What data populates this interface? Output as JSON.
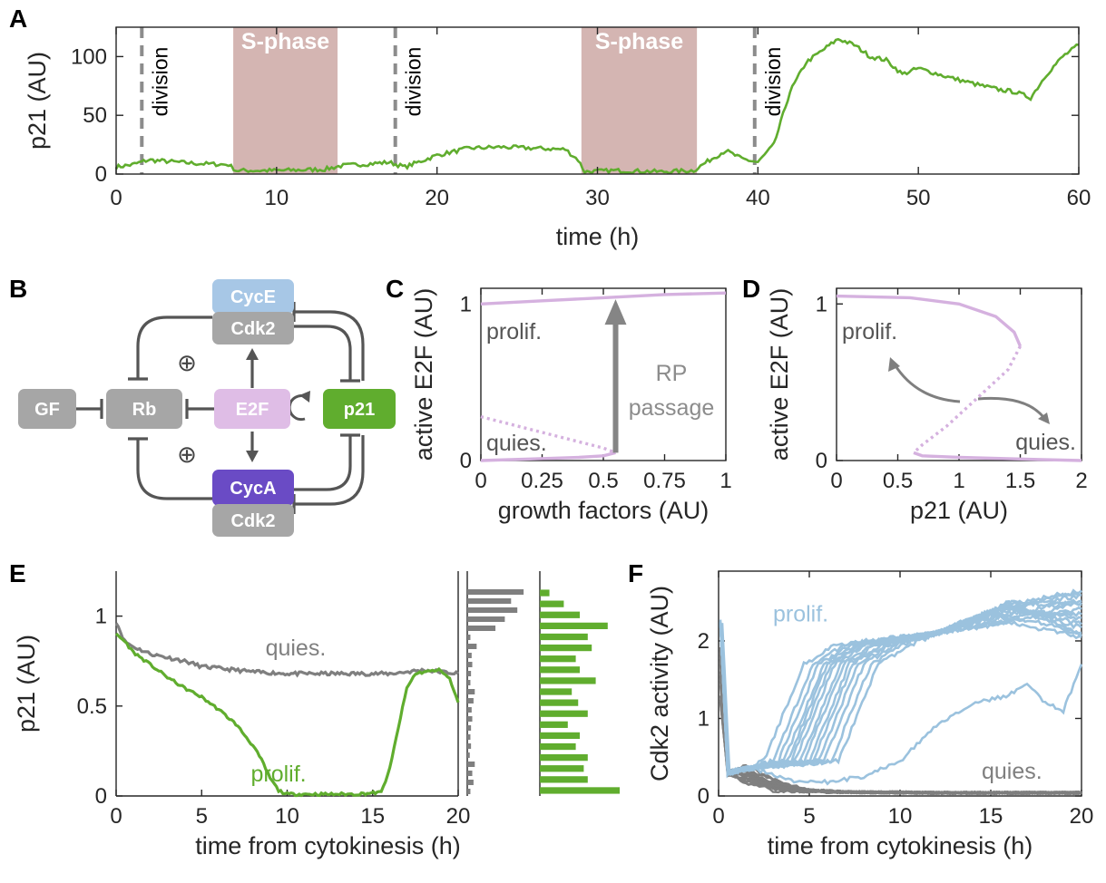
{
  "colors": {
    "p21_green": "#60ad2e",
    "prolif_blue": "#9bc2de",
    "quies_gray": "#7f7f7f",
    "sphase_fill": "#d4b5b2",
    "bifurcation": "#d5b1df",
    "cyce": "#a7c7e6",
    "cyca": "#6a4bc5",
    "e2f": "#dfbde6",
    "node_gray": "#a6a6a6",
    "edge": "#555555"
  },
  "panels": {
    "A": {
      "letter": "A"
    },
    "B": {
      "letter": "B"
    },
    "C": {
      "letter": "C"
    },
    "D": {
      "letter": "D"
    },
    "E": {
      "letter": "E"
    },
    "F": {
      "letter": "F"
    }
  },
  "network": {
    "nodes": {
      "gf": "GF",
      "rb": "Rb",
      "e2f": "E2F",
      "p21": "p21",
      "cyce": "CycE",
      "cyca": "CycA",
      "cdk2_top": "Cdk2",
      "cdk2_bottom": "Cdk2"
    },
    "plus_symbol": "⊕",
    "self_loop_icon": "circular-arrow-icon"
  },
  "chart_data": [
    {
      "id": "A",
      "type": "line",
      "xlabel": "time (h)",
      "ylabel": "p21 (AU)",
      "xlim": [
        0,
        60
      ],
      "ylim": [
        0,
        125
      ],
      "xticks": [
        0,
        10,
        20,
        30,
        40,
        50,
        60
      ],
      "yticks": [
        0,
        50,
        100
      ],
      "shaded_regions": [
        {
          "label": "S-phase",
          "x": [
            7.3,
            13.8
          ]
        },
        {
          "label": "S-phase",
          "x": [
            29.0,
            36.2
          ]
        }
      ],
      "vlines": [
        {
          "label": "division",
          "x": 1.6
        },
        {
          "label": "division",
          "x": 17.4
        },
        {
          "label": "division",
          "x": 39.8
        }
      ],
      "series": [
        {
          "x": [
            0,
            1,
            2,
            3,
            5,
            7,
            7.5,
            10,
            13,
            14,
            16,
            17,
            18,
            19,
            20,
            22,
            24,
            26,
            28,
            28.8,
            29.2,
            31,
            34,
            36,
            37,
            38,
            39,
            40,
            41,
            42,
            43,
            44,
            45,
            46,
            47,
            48,
            49,
            50,
            52,
            54,
            55,
            56,
            57,
            58,
            59,
            60
          ],
          "y": [
            6,
            8,
            12,
            11,
            9,
            8,
            3,
            3,
            4,
            7,
            9,
            10,
            6,
            11,
            16,
            22,
            23,
            22,
            21,
            12,
            2,
            3,
            2,
            3,
            12,
            20,
            13,
            10,
            25,
            70,
            95,
            105,
            115,
            110,
            100,
            97,
            85,
            90,
            82,
            75,
            72,
            70,
            65,
            85,
            100,
            110
          ]
        }
      ]
    },
    {
      "id": "C",
      "type": "line",
      "xlabel": "growth factors (AU)",
      "ylabel": "active E2F (AU)",
      "xlim": [
        0,
        1
      ],
      "ylim": [
        0,
        1.1
      ],
      "xticks": [
        0,
        0.25,
        0.5,
        0.75,
        1
      ],
      "ytick_labels": [
        "0",
        "1"
      ],
      "annotations": [
        "prolif.",
        "quies.",
        "RP",
        "passage"
      ],
      "series": [
        {
          "style": "solid",
          "x": [
            0,
            0.25,
            0.5,
            0.75,
            1
          ],
          "y": [
            1.0,
            1.02,
            1.04,
            1.06,
            1.07
          ]
        },
        {
          "style": "dotted",
          "x": [
            0,
            0.2,
            0.4,
            0.5,
            0.55
          ],
          "y": [
            0.28,
            0.2,
            0.12,
            0.08,
            0.05
          ]
        },
        {
          "style": "solid",
          "x": [
            0,
            0.2,
            0.4,
            0.5,
            0.55
          ],
          "y": [
            0.0,
            0.01,
            0.02,
            0.03,
            0.05
          ]
        }
      ],
      "arrow": {
        "x": 0.55,
        "y": [
          0.05,
          1.03
        ]
      }
    },
    {
      "id": "D",
      "type": "line",
      "xlabel": "p21 (AU)",
      "ylabel": "active E2F (AU)",
      "xlim": [
        0,
        2
      ],
      "ylim": [
        0,
        1.1
      ],
      "xticks": [
        0,
        0.5,
        1,
        1.5,
        2
      ],
      "ytick_labels": [
        "0",
        "1"
      ],
      "annotations": [
        "prolif.",
        "quies."
      ],
      "series": [
        {
          "style": "solid",
          "x": [
            0,
            0.6,
            1.0,
            1.3,
            1.45,
            1.5
          ],
          "y": [
            1.05,
            1.04,
            1.0,
            0.92,
            0.82,
            0.73
          ]
        },
        {
          "style": "dotted",
          "x": [
            1.5,
            1.4,
            1.15,
            0.9,
            0.7,
            0.63
          ],
          "y": [
            0.73,
            0.58,
            0.4,
            0.22,
            0.1,
            0.05
          ]
        },
        {
          "style": "solid",
          "x": [
            0.63,
            0.7,
            1.0,
            1.5,
            2.0
          ],
          "y": [
            0.05,
            0.03,
            0.02,
            0.01,
            0.0
          ]
        }
      ]
    },
    {
      "id": "E",
      "type": "line",
      "xlabel": "time from cytokinesis (h)",
      "ylabel": "p21 (AU)",
      "xlim": [
        0,
        20
      ],
      "ylim": [
        0,
        1.25
      ],
      "xticks": [
        0,
        5,
        10,
        15,
        20
      ],
      "yticks": [
        0,
        0.5,
        1
      ],
      "series": [
        {
          "name": "quies.",
          "x": [
            0,
            0.5,
            1,
            2,
            3,
            4,
            5,
            6,
            7,
            8,
            10,
            12,
            14,
            16,
            18,
            20
          ],
          "y": [
            0.97,
            0.86,
            0.83,
            0.79,
            0.77,
            0.75,
            0.72,
            0.71,
            0.7,
            0.69,
            0.68,
            0.68,
            0.68,
            0.68,
            0.7,
            0.68
          ]
        },
        {
          "name": "prolif.",
          "x": [
            0,
            0.5,
            1,
            2,
            3,
            4,
            5,
            6,
            7,
            8,
            8.5,
            9,
            9.5,
            10,
            12,
            14,
            15.5,
            16,
            16.5,
            17,
            17.5,
            18,
            19,
            19.5,
            20
          ],
          "y": [
            0.9,
            0.86,
            0.8,
            0.73,
            0.66,
            0.6,
            0.55,
            0.48,
            0.4,
            0.28,
            0.2,
            0.1,
            0.03,
            0.01,
            0.01,
            0.01,
            0.02,
            0.15,
            0.38,
            0.6,
            0.68,
            0.69,
            0.7,
            0.65,
            0.52
          ]
        }
      ],
      "histograms": [
        {
          "name": "quies.",
          "values": [
            0.9,
            0.7,
            0.8,
            0.6,
            0.45,
            0.05,
            0.15,
            0.07,
            0.08,
            0.06,
            0.05,
            0.12,
            0.1,
            0.07,
            0.08,
            0.06,
            0.05,
            0.06,
            0.04,
            0.12,
            0.08,
            0.1,
            0.05
          ]
        },
        {
          "name": "prolif.",
          "values": [
            0.12,
            0.3,
            0.5,
            0.85,
            0.6,
            0.65,
            0.45,
            0.5,
            0.7,
            0.4,
            0.48,
            0.6,
            0.35,
            0.5,
            0.45,
            0.6,
            0.55,
            0.6,
            1.0
          ]
        }
      ]
    },
    {
      "id": "F",
      "type": "line",
      "xlabel": "time from cytokinesis (h)",
      "ylabel": "Cdk2 activity (AU)",
      "xlim": [
        0,
        20
      ],
      "ylim": [
        0,
        2.9
      ],
      "xticks": [
        0,
        5,
        10,
        15,
        20
      ],
      "yticks": [
        0,
        1,
        2
      ],
      "annotations": [
        "prolif.",
        "quies."
      ],
      "prolif_onsets": [
        2.5,
        3.0,
        3.3,
        3.6,
        3.8,
        4.0,
        4.2,
        4.5,
        4.7,
        5.0,
        5.2,
        5.5,
        5.8,
        6.2,
        6.6
      ],
      "late_trace": {
        "x": [
          0.2,
          0.6,
          2,
          4,
          6,
          8,
          10,
          12,
          14,
          16,
          17,
          18,
          19,
          20
        ],
        "y": [
          2.25,
          0.3,
          0.35,
          0.2,
          0.18,
          0.25,
          0.45,
          0.9,
          1.2,
          1.3,
          1.45,
          1.2,
          1.1,
          1.7
        ]
      },
      "quies_traces": 16
    }
  ]
}
